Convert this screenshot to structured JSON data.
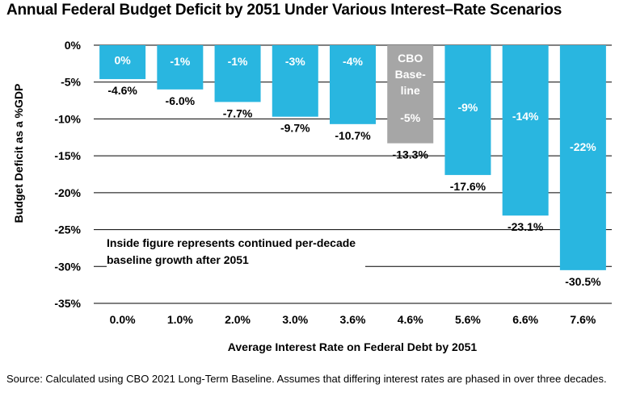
{
  "chart_data": {
    "type": "bar",
    "title": "Annual Federal Budget Deficit by 2051 Under Various Interest–Rate Scenarios",
    "xlabel": "Average Interest Rate on Federal Debt by 2051",
    "ylabel": "Budget Deficit as a %GDP",
    "ylim": [
      -35,
      0
    ],
    "yticks": [
      0,
      -5,
      -10,
      -15,
      -20,
      -25,
      -30,
      -35
    ],
    "ytick_labels": [
      "0%",
      "-5%",
      "-10%",
      "-15%",
      "-20%",
      "-25%",
      "-30%",
      "-35%"
    ],
    "grid": true,
    "categories": [
      "0.0%",
      "1.0%",
      "2.0%",
      "3.0%",
      "3.6%",
      "4.6%",
      "5.6%",
      "6.6%",
      "7.6%"
    ],
    "values": [
      -4.6,
      -6.0,
      -7.7,
      -9.7,
      -10.7,
      -13.3,
      -17.6,
      -23.1,
      -30.5
    ],
    "value_labels": [
      "-4.6%",
      "-6.0%",
      "-7.7%",
      "-9.7%",
      "-10.7%",
      "-13.3%",
      "-17.6%",
      "-23.1%",
      "-30.5%"
    ],
    "inside_labels": [
      "0%",
      "-1%",
      "-1%",
      "-3%",
      "-4%",
      "-5%",
      "-9%",
      "-14%",
      "-22%"
    ],
    "highlight_label": [
      "CBO",
      "Base-",
      "line"
    ],
    "highlight_index": 5,
    "annotation": "Inside figure represents continued per-decade baseline growth after 2051",
    "colors": {
      "bar": "#29b6e0",
      "baseline": "#a6a6a6",
      "grid": "#000000"
    }
  },
  "source": "Source: Calculated using CBO 2021 Long-Term Baseline. Assumes that differing interest rates are phased in over three decades."
}
